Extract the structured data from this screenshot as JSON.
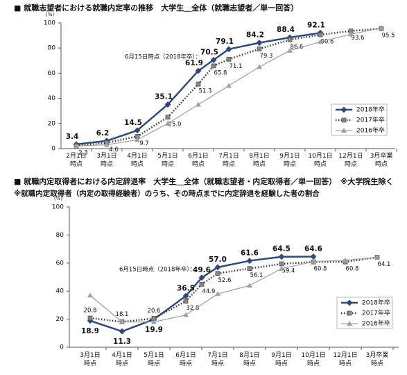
{
  "chart_data": [
    {
      "type": "line",
      "title": "■ 就職志望者における就職内定率の推移　大学生＿全体（就職志望者／単一回答）",
      "y_label": "(%)",
      "categories": [
        "2月1日\n時点",
        "3月1日\n時点",
        "4月1日\n時点",
        "5月1日\n時点",
        "6月1日\n時点",
        null,
        "7月1日\n時点",
        "8月1日\n時点",
        "9月1日\n時点",
        "10月1日\n時点",
        "12月1日\n時点",
        "3月卒業\n時点"
      ],
      "annotation": "6月15日時点（2018年卒）：",
      "ylim": [
        0,
        100
      ],
      "yticks": [
        0,
        20,
        40,
        60,
        80,
        100
      ],
      "grid": false,
      "legend": "right",
      "series": [
        {
          "name": "2018年卒",
          "color": "#2e4a7d",
          "values": [
            3.4,
            6.2,
            14.5,
            35.1,
            61.9,
            70.5,
            79.1,
            84.2,
            88.4,
            92.1,
            null,
            null
          ]
        },
        {
          "name": "2017年卒",
          "color": "#333333",
          "values": [
            2.3,
            4.6,
            9.7,
            25.0,
            51.3,
            65.8,
            71.1,
            79.3,
            86.6,
            90.6,
            93.6,
            95.5
          ],
          "value_labels": [
            "2.3",
            "4.6",
            "9.7",
            "25.0",
            "51.3",
            "65.8",
            "71.1",
            "79.3",
            "86.6",
            "90.6",
            "93.6",
            "95.5"
          ]
        },
        {
          "name": "2016年卒",
          "color": "#a0a0a0",
          "values": [
            2,
            3,
            7,
            20,
            35,
            null,
            50,
            65,
            78,
            85,
            91,
            96
          ]
        }
      ]
    },
    {
      "type": "line",
      "title": "■ 就職内定取得者における内定辞退率　大学生＿全体（就職志望者・内定取得者／単一回答）　※大学院生除く",
      "subtitle": "※就職内定取得者（内定の取得経験者）のうち、その時点までに内定辞退を経験した者の割合",
      "y_label": "(%)",
      "categories": [
        "3月1日\n時点",
        "4月1日\n時点",
        "5月1日\n時点",
        "6月1日\n時点",
        null,
        "7月1日\n時点",
        "8月1日\n時点",
        "9月1日\n時点",
        "10月1日\n時点",
        "12月1日\n時点",
        "3月卒業\n時点"
      ],
      "annotation": "6月15日時点（2018年卒）：",
      "ylim": [
        0,
        100
      ],
      "yticks": [
        0,
        20,
        40,
        60,
        80,
        100
      ],
      "grid": false,
      "legend": "right",
      "series": [
        {
          "name": "2018年卒",
          "color": "#2e4a7d",
          "values": [
            18.9,
            11.3,
            19.9,
            36.5,
            49.6,
            57.0,
            61.6,
            64.5,
            64.6,
            null,
            null
          ],
          "value_labels": [
            "18.9",
            "11.3",
            "19.9",
            "36.5",
            "49.6",
            "57.0",
            "61.6",
            "64.5",
            "64.6",
            null,
            null
          ]
        },
        {
          "name": "2017年卒",
          "color": "#333333",
          "values": [
            20.8,
            18.1,
            20.6,
            32.8,
            44.9,
            52.6,
            56.1,
            59.4,
            60.8,
            60.8,
            64.1
          ]
        },
        {
          "name": "2016年卒",
          "color": "#a0a0a0",
          "values": [
            37,
            18,
            18,
            23,
            null,
            38,
            44,
            56,
            61,
            62,
            64
          ]
        }
      ]
    }
  ]
}
